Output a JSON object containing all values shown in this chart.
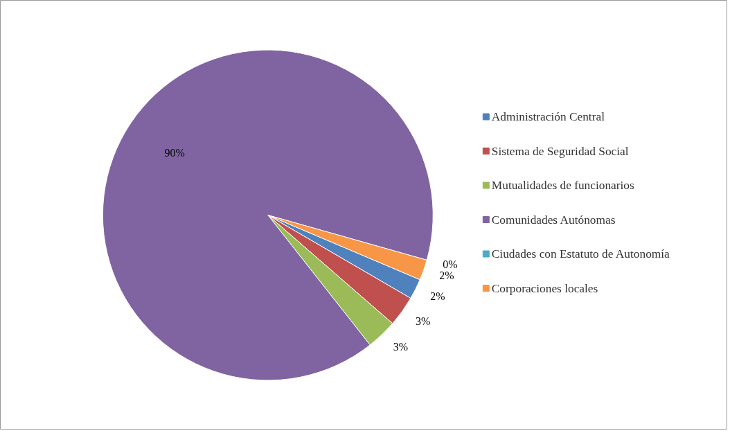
{
  "chart_data": {
    "type": "pie",
    "categories": [
      "Administración Central",
      "Sistema de Seguridad Social",
      "Mutualidades de funcionarios",
      "Comunidades Autónomas",
      "Ciudades con Estatuto de Autonomía",
      "Corporaciones locales"
    ],
    "values": [
      2,
      3,
      3,
      90,
      0,
      2
    ],
    "value_labels": [
      "2%",
      "3%",
      "3%",
      "90%",
      "0%",
      "2%"
    ],
    "colors": [
      "#4f81bd",
      "#c0504d",
      "#9bbb59",
      "#8064a2",
      "#4bacc6",
      "#f79646"
    ],
    "legend": "right"
  }
}
